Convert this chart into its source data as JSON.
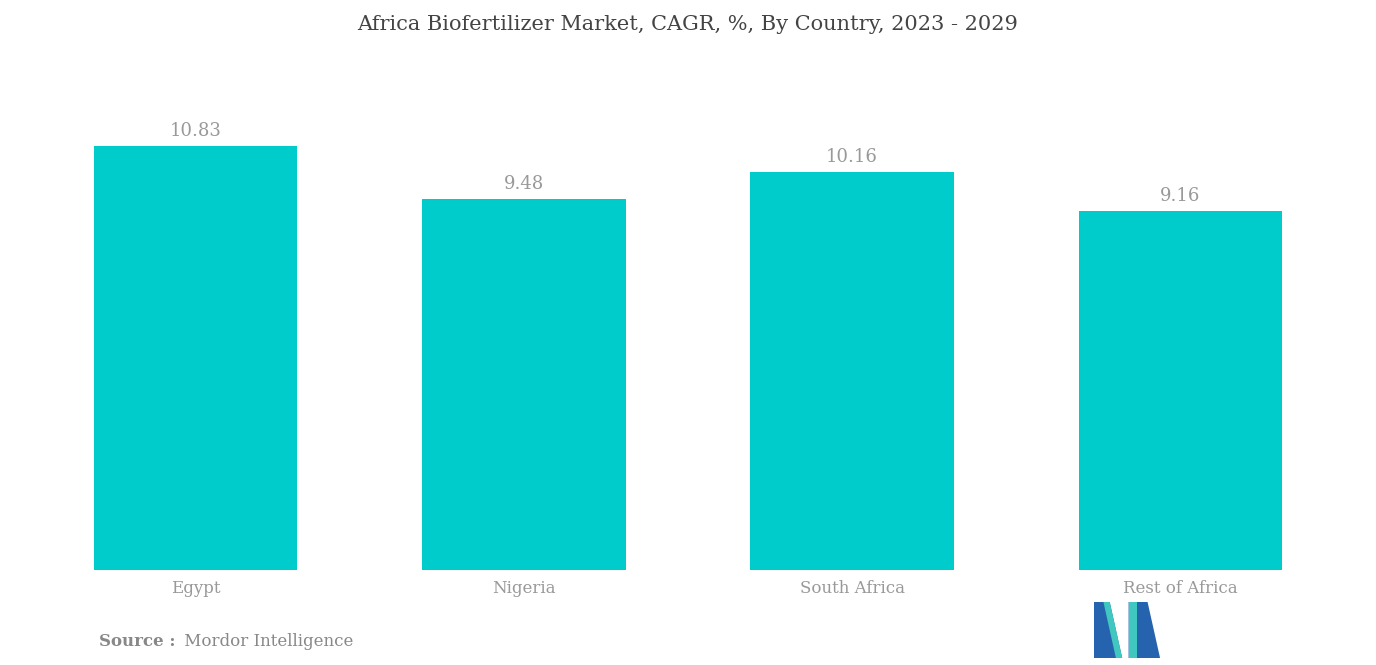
{
  "title": "Africa Biofertilizer Market, CAGR, %, By Country, 2023 - 2029",
  "categories": [
    "Egypt",
    "Nigeria",
    "South Africa",
    "Rest of Africa"
  ],
  "values": [
    10.83,
    9.48,
    10.16,
    9.16
  ],
  "bar_color": "#00CCCC",
  "label_color": "#999999",
  "title_color": "#444444",
  "background_color": "#ffffff",
  "ylim": [
    0,
    13
  ],
  "bar_width": 0.62,
  "source_bold": "Source :",
  "source_normal": " Mordor Intelligence",
  "source_color": "#888888",
  "title_fontsize": 15,
  "label_fontsize": 13,
  "tick_fontsize": 12,
  "source_fontsize": 12
}
